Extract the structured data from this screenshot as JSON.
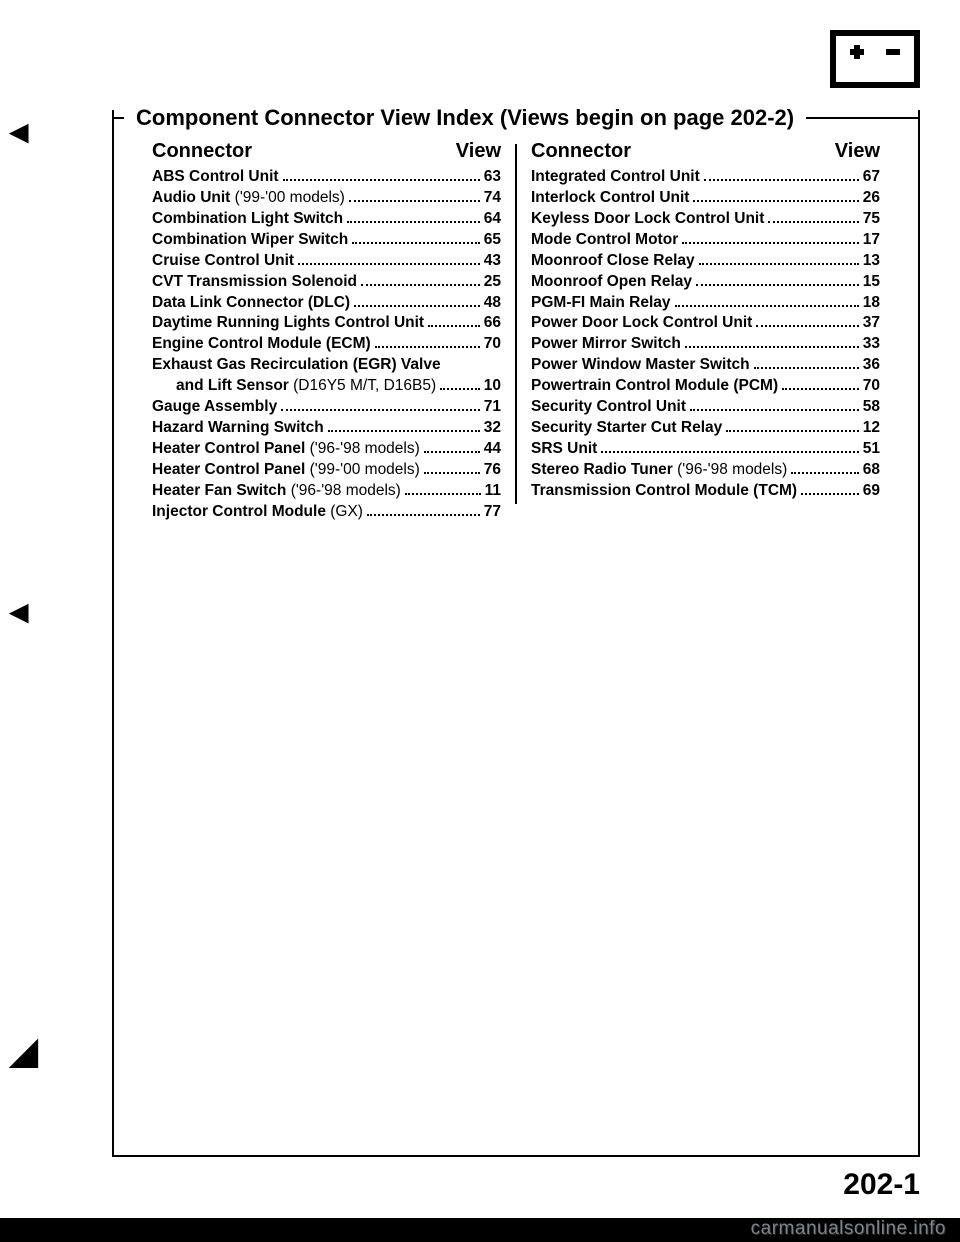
{
  "icon": {
    "name": "battery-icon"
  },
  "title": {
    "bold": "Component Connector View Index",
    "rest": "(Views begin on page 202-2)"
  },
  "header": {
    "connector": "Connector",
    "view": "View"
  },
  "left_entries": [
    {
      "label": "ABS Control Unit",
      "paren": "",
      "page": "63",
      "indent": false
    },
    {
      "label": "Audio Unit ",
      "paren": "('99-'00 models)",
      "page": "74",
      "indent": false
    },
    {
      "label": "Combination Light Switch",
      "paren": "",
      "page": "64",
      "indent": false
    },
    {
      "label": "Combination Wiper Switch",
      "paren": "",
      "page": "65",
      "indent": false
    },
    {
      "label": "Cruise Control Unit",
      "paren": "",
      "page": "43",
      "indent": false
    },
    {
      "label": "CVT Transmission Solenoid",
      "paren": "",
      "page": "25",
      "indent": false
    },
    {
      "label": "Data Link Connector (DLC)",
      "paren": "",
      "page": "48",
      "indent": false
    },
    {
      "label": "Daytime Running Lights Control Unit",
      "paren": "",
      "page": "66",
      "indent": false
    },
    {
      "label": "Engine Control Module (ECM)",
      "paren": "",
      "page": "70",
      "indent": false
    },
    {
      "label": "Exhaust Gas Recirculation (EGR) Valve",
      "paren": "",
      "page": "",
      "indent": false,
      "no_dots": true
    },
    {
      "label": "and Lift Sensor ",
      "paren": "(D16Y5 M/T, D16B5)",
      "page": "10",
      "indent": true
    },
    {
      "label": "Gauge Assembly",
      "paren": "",
      "page": "71",
      "indent": false
    },
    {
      "label": "Hazard Warning Switch",
      "paren": "",
      "page": "32",
      "indent": false
    },
    {
      "label": "Heater Control Panel ",
      "paren": "('96-'98 models)",
      "page": "44",
      "indent": false
    },
    {
      "label": "Heater Control Panel ",
      "paren": "('99-'00 models)",
      "page": "76",
      "indent": false
    },
    {
      "label": "Heater Fan Switch ",
      "paren": "('96-'98 models)",
      "page": "11",
      "indent": false
    },
    {
      "label": "Injector Control Module ",
      "paren": "(GX)",
      "page": "77",
      "indent": false
    }
  ],
  "right_entries": [
    {
      "label": "Integrated Control Unit",
      "paren": "",
      "page": "67",
      "indent": false
    },
    {
      "label": "Interlock Control Unit",
      "paren": "",
      "page": "26",
      "indent": false
    },
    {
      "label": "Keyless Door Lock Control Unit",
      "paren": "",
      "page": "75",
      "indent": false
    },
    {
      "label": "Mode Control Motor",
      "paren": "",
      "page": "17",
      "indent": false
    },
    {
      "label": "Moonroof Close Relay",
      "paren": "",
      "page": "13",
      "indent": false
    },
    {
      "label": "Moonroof Open Relay",
      "paren": "",
      "page": "15",
      "indent": false
    },
    {
      "label": "PGM-FI Main Relay",
      "paren": "",
      "page": "18",
      "indent": false
    },
    {
      "label": "Power Door Lock Control Unit",
      "paren": "",
      "page": "37",
      "indent": false
    },
    {
      "label": "Power Mirror Switch",
      "paren": "",
      "page": "33",
      "indent": false
    },
    {
      "label": "Power Window Master Switch",
      "paren": "",
      "page": "36",
      "indent": false
    },
    {
      "label": "Powertrain Control Module (PCM)",
      "paren": "",
      "page": "70",
      "indent": false
    },
    {
      "label": "Security Control Unit",
      "paren": "",
      "page": "58",
      "indent": false
    },
    {
      "label": "Security Starter Cut Relay",
      "paren": "",
      "page": "12",
      "indent": false
    },
    {
      "label": "SRS Unit",
      "paren": "",
      "page": "51",
      "indent": false
    },
    {
      "label": "Stereo Radio Tuner ",
      "paren": "('96-'98 models)",
      "page": "68",
      "indent": false
    },
    {
      "label": "Transmission Control Module (TCM)",
      "paren": "",
      "page": "69",
      "indent": false
    }
  ],
  "page_number": "202-1",
  "watermark": "carmanualsonline.info",
  "colors": {
    "text": "#000000",
    "bg": "#ffffff",
    "watermark": "#7c838a"
  }
}
